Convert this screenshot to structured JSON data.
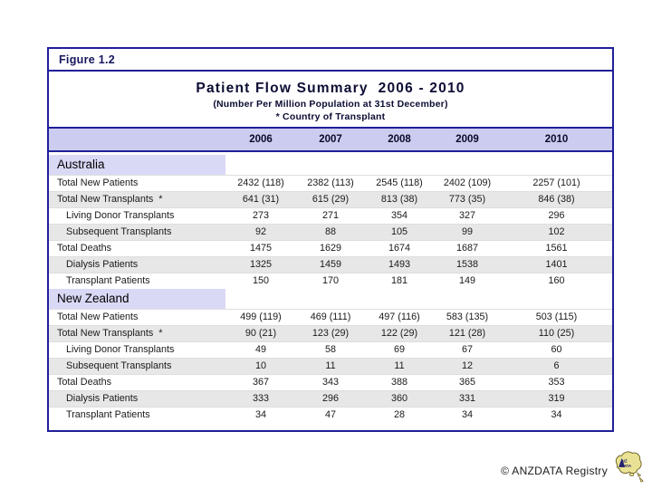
{
  "figure_label": "Figure 1.2",
  "title": "Patient Flow Summary  2006 - 2010",
  "subtitle_line1": "(Number Per Million Population at 31st December)",
  "subtitle_line2": "* Country of Transplant",
  "years": [
    "2006",
    "2007",
    "2008",
    "2009",
    "2010"
  ],
  "sections": [
    {
      "name": "Australia",
      "rows": [
        {
          "label": "Total New Patients",
          "indent": false,
          "shaded": false,
          "values": [
            "2432 (118)",
            "2382 (113)",
            "2545 (118)",
            "2402 (109)",
            "2257 (101)"
          ]
        },
        {
          "label": "Total New Transplants  *",
          "indent": false,
          "shaded": true,
          "values": [
            "641 (31)",
            "615 (29)",
            "813 (38)",
            "773 (35)",
            "846 (38)"
          ]
        },
        {
          "label": "Living Donor Transplants",
          "indent": true,
          "shaded": false,
          "values": [
            "273",
            "271",
            "354",
            "327",
            "296"
          ]
        },
        {
          "label": "Subsequent Transplants",
          "indent": true,
          "shaded": true,
          "values": [
            "92",
            "88",
            "105",
            "99",
            "102"
          ]
        },
        {
          "label": "Total Deaths",
          "indent": false,
          "shaded": false,
          "values": [
            "1475",
            "1629",
            "1674",
            "1687",
            "1561"
          ]
        },
        {
          "label": "Dialysis Patients",
          "indent": true,
          "shaded": true,
          "values": [
            "1325",
            "1459",
            "1493",
            "1538",
            "1401"
          ]
        },
        {
          "label": "Transplant Patients",
          "indent": true,
          "shaded": false,
          "values": [
            "150",
            "170",
            "181",
            "149",
            "160"
          ]
        }
      ]
    },
    {
      "name": "New Zealand",
      "rows": [
        {
          "label": "Total New Patients",
          "indent": false,
          "shaded": false,
          "values": [
            "499 (119)",
            "469 (111)",
            "497 (116)",
            "583 (135)",
            "503 (115)"
          ]
        },
        {
          "label": "Total New Transplants  *",
          "indent": false,
          "shaded": true,
          "values": [
            "90 (21)",
            "123 (29)",
            "122 (29)",
            "121 (28)",
            "110 (25)"
          ]
        },
        {
          "label": "Living Donor Transplants",
          "indent": true,
          "shaded": false,
          "values": [
            "49",
            "58",
            "69",
            "67",
            "60"
          ]
        },
        {
          "label": "Subsequent Transplants",
          "indent": true,
          "shaded": true,
          "values": [
            "10",
            "11",
            "11",
            "12",
            "6"
          ]
        },
        {
          "label": "Total Deaths",
          "indent": false,
          "shaded": false,
          "values": [
            "367",
            "343",
            "388",
            "365",
            "353"
          ]
        },
        {
          "label": "Dialysis Patients",
          "indent": true,
          "shaded": true,
          "values": [
            "333",
            "296",
            "360",
            "331",
            "319"
          ]
        },
        {
          "label": "Transplant Patients",
          "indent": true,
          "shaded": false,
          "values": [
            "34",
            "47",
            "28",
            "34",
            "34"
          ]
        }
      ]
    }
  ],
  "footer": {
    "credit": "© ANZDATA Registry",
    "logo_icon": "anzdata-australia-map-logo"
  },
  "colors": {
    "border_navy": "#1f1f99",
    "year_band_lavender": "#ccccf0",
    "section_band_lavender": "#d9d9f6",
    "shaded_row_gray": "#e7e7e7",
    "heading_navy": "#16165e",
    "logo_fill_khaki": "#e9e294"
  }
}
